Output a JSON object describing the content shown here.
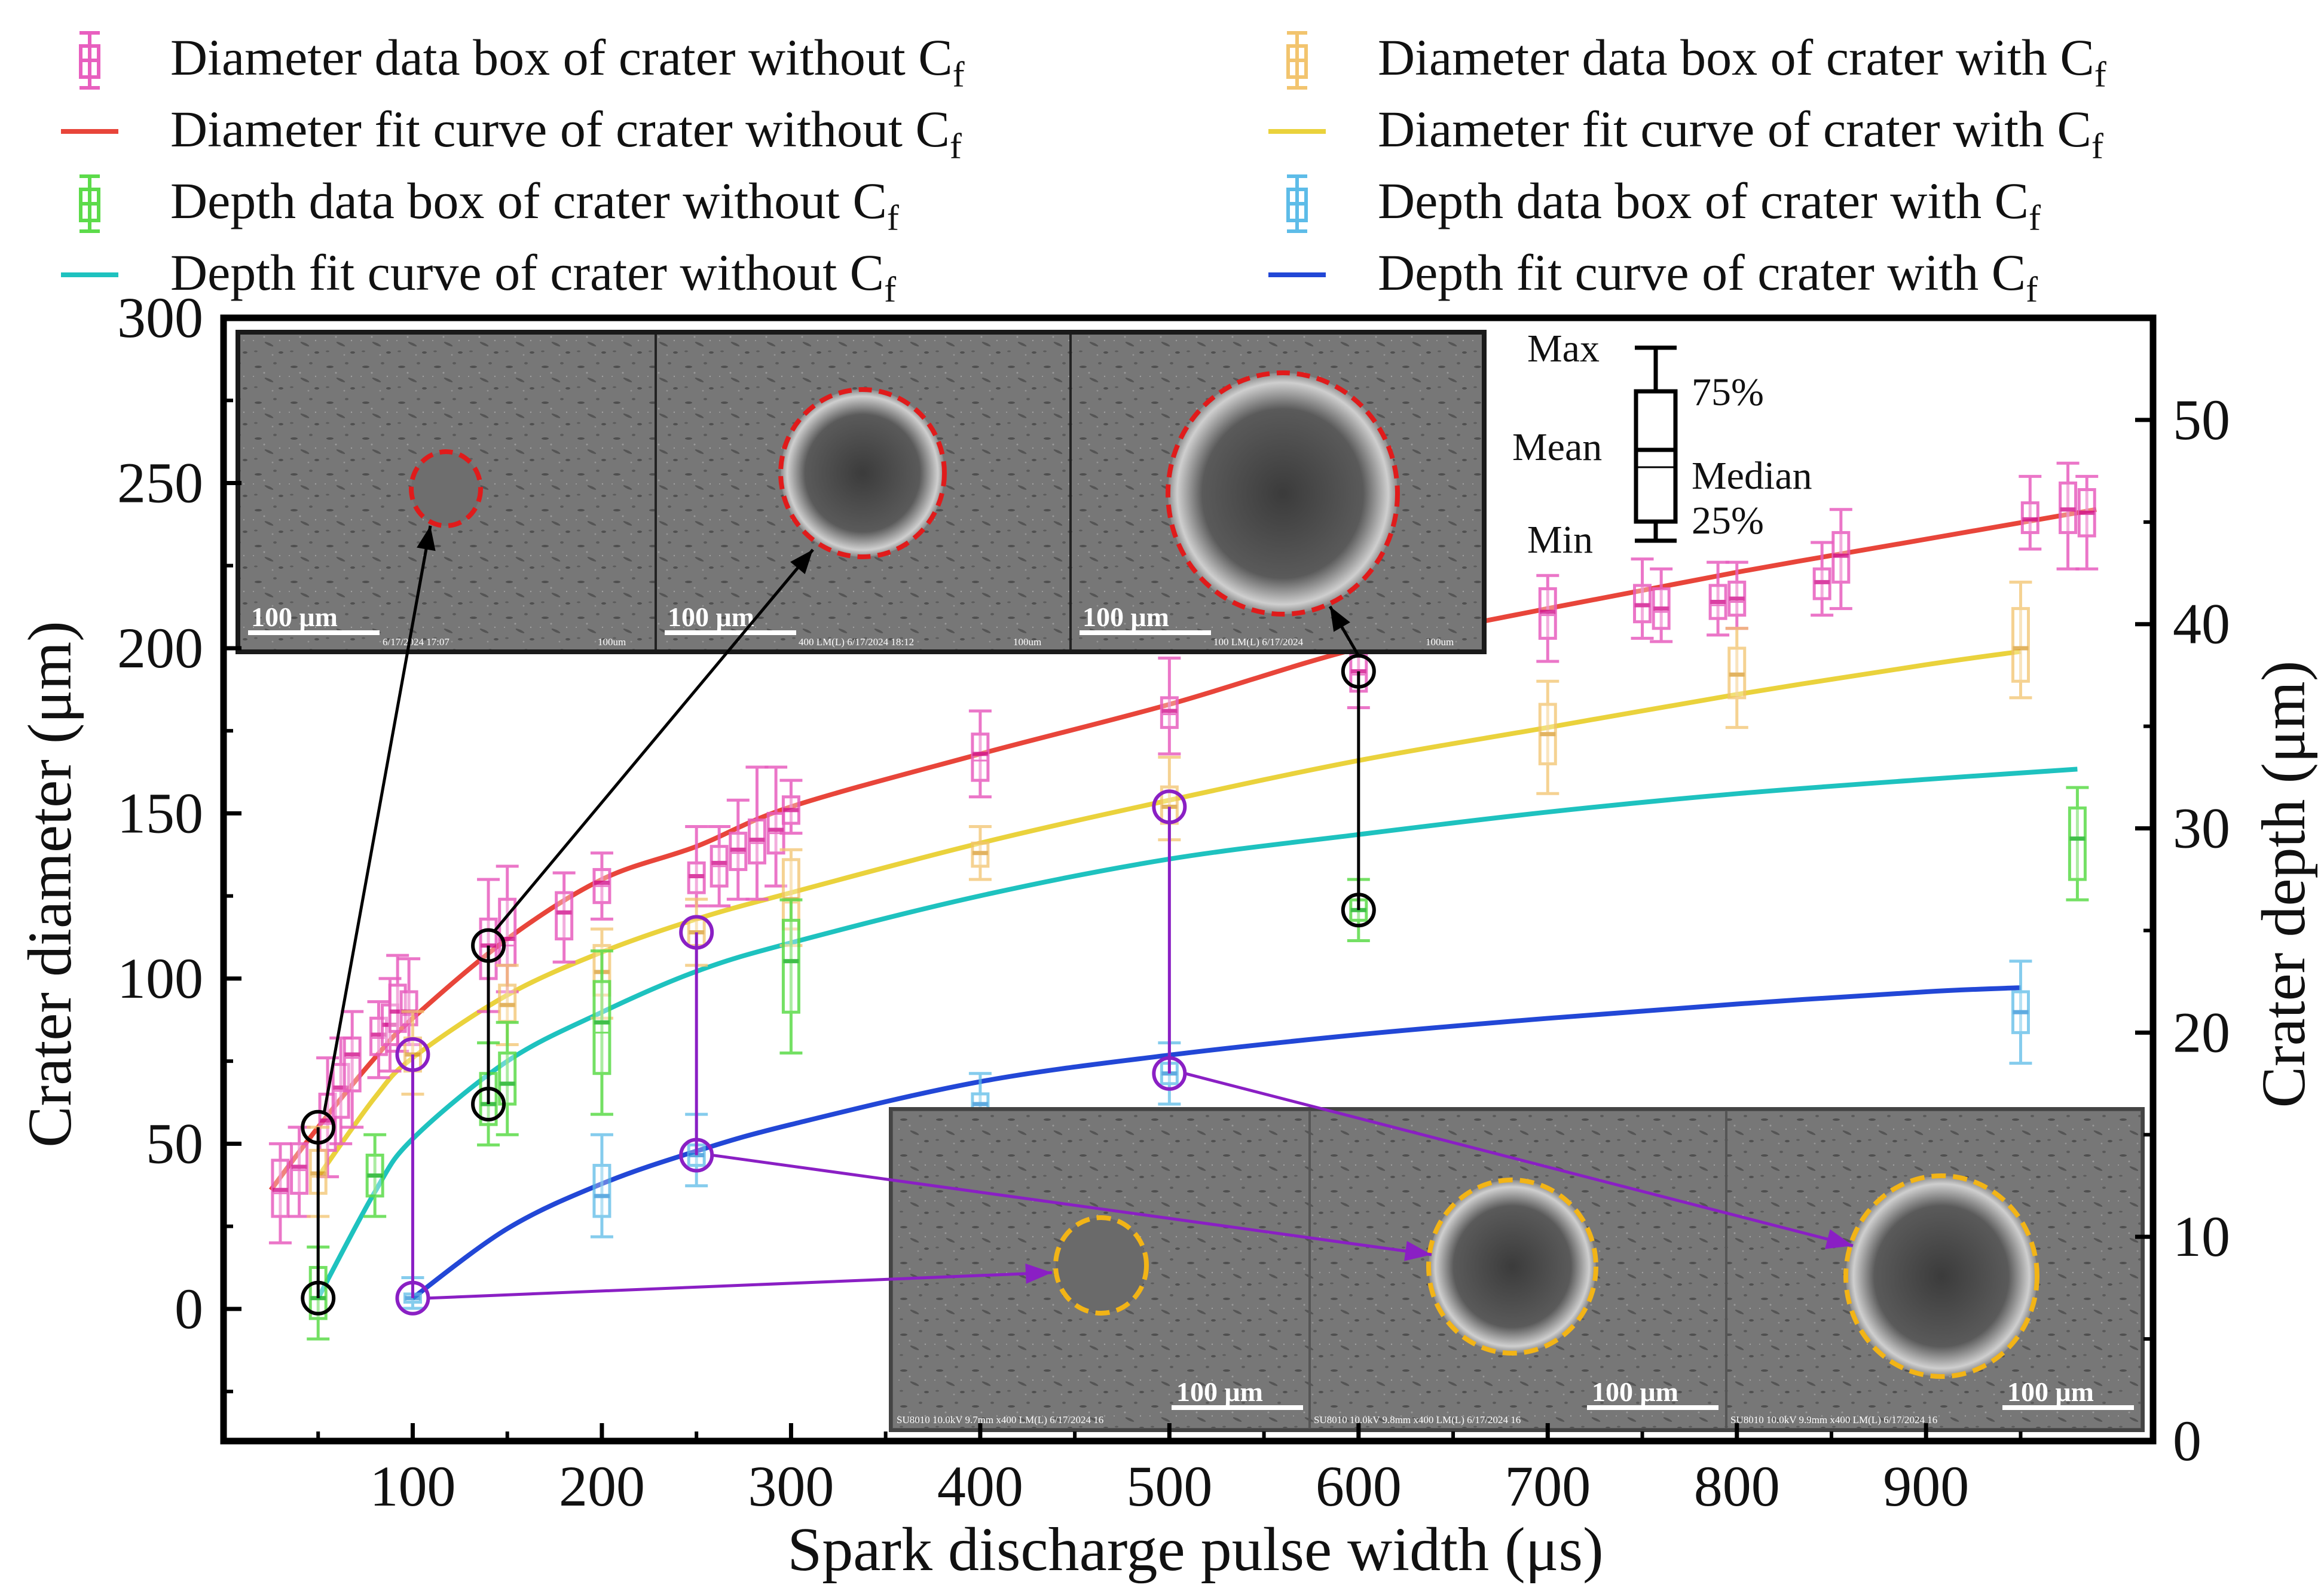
{
  "chart_data": {
    "type": "box-with-fit-curves",
    "xlabel": "Spark discharge pulse width (μs)",
    "ylabel_left": "Crater diameter (μm)",
    "ylabel_right": "Crater depth (μm)",
    "xlim": [
      0,
      1020
    ],
    "ylim_left": [
      -40,
      300
    ],
    "ylim_right": [
      0,
      55
    ],
    "x_ticks": [
      100,
      200,
      300,
      400,
      500,
      600,
      700,
      800,
      900
    ],
    "y_ticks_left": [
      0,
      50,
      100,
      150,
      200,
      250,
      300
    ],
    "y_ticks_right": [
      0,
      10,
      20,
      30,
      40,
      50
    ],
    "colors": {
      "diam_box_without": "#e85fbf",
      "diam_fit_without": "#e8453a",
      "diam_box_with": "#f2c46e",
      "diam_fit_with": "#ead23c",
      "depth_box_without": "#5cdb4a",
      "depth_fit_without": "#1ec2bf",
      "depth_box_with": "#5dbce8",
      "depth_fit_with": "#2247d6",
      "marker_black": "#000000",
      "marker_purple": "#8a1fc4",
      "circle_red": "#e01b1b",
      "circle_orange": "#f2b416"
    },
    "legend": [
      {
        "key": "diam_box_without",
        "kind": "box",
        "text": "Diameter data box of crater without C",
        "sub": "f"
      },
      {
        "key": "diam_fit_without",
        "kind": "line",
        "text": "Diameter fit curve of crater without C",
        "sub": "f"
      },
      {
        "key": "depth_box_without",
        "kind": "box",
        "text": "Depth data box of crater without C",
        "sub": "f"
      },
      {
        "key": "depth_fit_without",
        "kind": "line",
        "text": "Depth fit curve of crater without C",
        "sub": "f"
      },
      {
        "key": "diam_box_with",
        "kind": "box",
        "text": "Diameter data box of crater with C",
        "sub": "f"
      },
      {
        "key": "diam_fit_with",
        "kind": "line",
        "text": "Diameter fit curve of crater with C",
        "sub": "f"
      },
      {
        "key": "depth_box_with",
        "kind": "box",
        "text": "Depth data box of crater with C",
        "sub": "f"
      },
      {
        "key": "depth_fit_with",
        "kind": "line",
        "text": "Depth fit curve of crater with C",
        "sub": "f"
      }
    ],
    "box_legend": {
      "max": "Max",
      "q3": "75%",
      "mean": "Mean",
      "median": "Median",
      "q1": "25%",
      "min": "Min"
    },
    "fit_curves": [
      {
        "key": "diam_fit_without",
        "axis": "left",
        "x": [
          25,
          50,
          80,
          100,
          150,
          200,
          250,
          300,
          400,
          500,
          600,
          700,
          800,
          900,
          990
        ],
        "y": [
          36,
          55,
          76,
          88,
          112,
          130,
          140,
          152,
          168,
          183,
          200,
          212,
          223,
          233,
          242
        ]
      },
      {
        "key": "diam_fit_with",
        "axis": "left",
        "x": [
          50,
          80,
          100,
          150,
          200,
          250,
          300,
          400,
          500,
          600,
          700,
          800,
          900,
          950
        ],
        "y": [
          40,
          64,
          76,
          95,
          108,
          118,
          126,
          141,
          154,
          166,
          176,
          186,
          195,
          199
        ]
      },
      {
        "key": "depth_fit_without",
        "axis": "right",
        "x": [
          50,
          80,
          100,
          150,
          200,
          250,
          300,
          400,
          500,
          600,
          700,
          800,
          900,
          980
        ],
        "y": [
          7,
          12.2,
          14.8,
          18.6,
          21,
          23,
          24.4,
          26.7,
          28.5,
          29.7,
          30.8,
          31.7,
          32.4,
          32.9
        ]
      },
      {
        "key": "depth_fit_with",
        "axis": "right",
        "x": [
          100,
          150,
          200,
          250,
          300,
          400,
          500,
          600,
          700,
          800,
          900,
          950
        ],
        "y": [
          7,
          10.4,
          12.6,
          14.2,
          15.5,
          17.6,
          18.9,
          19.9,
          20.7,
          21.4,
          22,
          22.2
        ]
      }
    ],
    "boxes": [
      {
        "key": "diam_box_without",
        "axis": "left",
        "x": 30,
        "min": 20,
        "q1": 28,
        "median": 35,
        "mean": 36,
        "q3": 45,
        "max": 50
      },
      {
        "key": "diam_box_without",
        "axis": "left",
        "x": 40,
        "min": 28,
        "q1": 35,
        "median": 42,
        "mean": 43,
        "q3": 50,
        "max": 55
      },
      {
        "key": "diam_box_without",
        "axis": "left",
        "x": 55,
        "min": 40,
        "q1": 48,
        "median": 56,
        "mean": 57,
        "q3": 65,
        "max": 76
      },
      {
        "key": "diam_box_without",
        "axis": "left",
        "x": 62,
        "min": 50,
        "q1": 58,
        "median": 66,
        "mean": 67,
        "q3": 74,
        "max": 82
      },
      {
        "key": "diam_box_without",
        "axis": "left",
        "x": 68,
        "min": 55,
        "q1": 66,
        "median": 76,
        "mean": 77,
        "q3": 82,
        "max": 90
      },
      {
        "key": "diam_box_without",
        "axis": "left",
        "x": 82,
        "min": 70,
        "q1": 77,
        "median": 82,
        "mean": 83,
        "q3": 88,
        "max": 93
      },
      {
        "key": "diam_box_without",
        "axis": "left",
        "x": 88,
        "min": 72,
        "q1": 80,
        "median": 86,
        "mean": 86,
        "q3": 92,
        "max": 100
      },
      {
        "key": "diam_box_without",
        "axis": "left",
        "x": 92,
        "min": 78,
        "q1": 84,
        "median": 90,
        "mean": 90,
        "q3": 98,
        "max": 107
      },
      {
        "key": "diam_box_without",
        "axis": "left",
        "x": 98,
        "min": 80,
        "q1": 86,
        "median": 89,
        "mean": 90,
        "q3": 96,
        "max": 106
      },
      {
        "key": "diam_box_without",
        "axis": "left",
        "x": 140,
        "min": 90,
        "q1": 100,
        "median": 110,
        "mean": 110,
        "q3": 118,
        "max": 130
      },
      {
        "key": "diam_box_without",
        "axis": "left",
        "x": 150,
        "min": 96,
        "q1": 104,
        "median": 110,
        "mean": 112,
        "q3": 124,
        "max": 134
      },
      {
        "key": "diam_box_without",
        "axis": "left",
        "x": 180,
        "min": 105,
        "q1": 112,
        "median": 120,
        "mean": 120,
        "q3": 126,
        "max": 132
      },
      {
        "key": "diam_box_without",
        "axis": "left",
        "x": 200,
        "min": 118,
        "q1": 123,
        "median": 128,
        "mean": 129,
        "q3": 133,
        "max": 138
      },
      {
        "key": "diam_box_without",
        "axis": "left",
        "x": 250,
        "min": 122,
        "q1": 126,
        "median": 131,
        "mean": 131,
        "q3": 135,
        "max": 146
      },
      {
        "key": "diam_box_without",
        "axis": "left",
        "x": 262,
        "min": 122,
        "q1": 128,
        "median": 134,
        "mean": 135,
        "q3": 140,
        "max": 146
      },
      {
        "key": "diam_box_without",
        "axis": "left",
        "x": 272,
        "min": 124,
        "q1": 133,
        "median": 138,
        "mean": 139,
        "q3": 144,
        "max": 154
      },
      {
        "key": "diam_box_without",
        "axis": "left",
        "x": 282,
        "min": 124,
        "q1": 135,
        "median": 141,
        "mean": 142,
        "q3": 148,
        "max": 164
      },
      {
        "key": "diam_box_without",
        "axis": "left",
        "x": 292,
        "min": 128,
        "q1": 138,
        "median": 144,
        "mean": 145,
        "q3": 150,
        "max": 164
      },
      {
        "key": "diam_box_without",
        "axis": "left",
        "x": 300,
        "min": 144,
        "q1": 147,
        "median": 151,
        "mean": 151,
        "q3": 155,
        "max": 160
      },
      {
        "key": "diam_box_without",
        "axis": "left",
        "x": 400,
        "min": 155,
        "q1": 160,
        "median": 166,
        "mean": 168,
        "q3": 174,
        "max": 181
      },
      {
        "key": "diam_box_without",
        "axis": "left",
        "x": 500,
        "min": 168,
        "q1": 176,
        "median": 180,
        "mean": 181,
        "q3": 185,
        "max": 197
      },
      {
        "key": "diam_box_without",
        "axis": "left",
        "x": 600,
        "min": 182,
        "q1": 187,
        "median": 192,
        "mean": 193,
        "q3": 198,
        "max": 205
      },
      {
        "key": "diam_box_without",
        "axis": "left",
        "x": 700,
        "min": 196,
        "q1": 203,
        "median": 210,
        "mean": 211,
        "q3": 218,
        "max": 222
      },
      {
        "key": "diam_box_without",
        "axis": "left",
        "x": 750,
        "min": 203,
        "q1": 208,
        "median": 213,
        "mean": 213,
        "q3": 219,
        "max": 227
      },
      {
        "key": "diam_box_without",
        "axis": "left",
        "x": 760,
        "min": 202,
        "q1": 206,
        "median": 211,
        "mean": 212,
        "q3": 218,
        "max": 224
      },
      {
        "key": "diam_box_without",
        "axis": "left",
        "x": 790,
        "min": 204,
        "q1": 209,
        "median": 213,
        "mean": 214,
        "q3": 219,
        "max": 226
      },
      {
        "key": "diam_box_without",
        "axis": "left",
        "x": 800,
        "min": 206,
        "q1": 210,
        "median": 214,
        "mean": 215,
        "q3": 220,
        "max": 226
      },
      {
        "key": "diam_box_without",
        "axis": "left",
        "x": 845,
        "min": 210,
        "q1": 215,
        "median": 220,
        "mean": 220,
        "q3": 224,
        "max": 232
      },
      {
        "key": "diam_box_without",
        "axis": "left",
        "x": 855,
        "min": 212,
        "q1": 220,
        "median": 228,
        "mean": 228,
        "q3": 235,
        "max": 242
      },
      {
        "key": "diam_box_without",
        "axis": "left",
        "x": 955,
        "min": 230,
        "q1": 235,
        "median": 239,
        "mean": 239,
        "q3": 244,
        "max": 252
      },
      {
        "key": "diam_box_without",
        "axis": "left",
        "x": 975,
        "min": 224,
        "q1": 235,
        "median": 242,
        "mean": 242,
        "q3": 250,
        "max": 256
      },
      {
        "key": "diam_box_without",
        "axis": "left",
        "x": 985,
        "min": 224,
        "q1": 234,
        "median": 241,
        "mean": 241,
        "q3": 248,
        "max": 252
      },
      {
        "key": "diam_box_with",
        "axis": "left",
        "x": 50,
        "min": 28,
        "q1": 35,
        "median": 40,
        "mean": 41,
        "q3": 48,
        "max": 55
      },
      {
        "key": "diam_box_with",
        "axis": "left",
        "x": 100,
        "min": 65,
        "q1": 72,
        "median": 77,
        "mean": 77,
        "q3": 82,
        "max": 90
      },
      {
        "key": "diam_box_with",
        "axis": "left",
        "x": 150,
        "min": 80,
        "q1": 87,
        "median": 92,
        "mean": 92,
        "q3": 98,
        "max": 104
      },
      {
        "key": "diam_box_with",
        "axis": "left",
        "x": 200,
        "min": 88,
        "q1": 95,
        "median": 102,
        "mean": 102,
        "q3": 110,
        "max": 115
      },
      {
        "key": "diam_box_with",
        "axis": "left",
        "x": 250,
        "min": 104,
        "q1": 110,
        "median": 114,
        "mean": 114,
        "q3": 118,
        "max": 124
      },
      {
        "key": "diam_box_with",
        "axis": "left",
        "x": 300,
        "min": 110,
        "q1": 115,
        "median": 123,
        "mean": 124,
        "q3": 136,
        "max": 139
      },
      {
        "key": "diam_box_with",
        "axis": "left",
        "x": 400,
        "min": 130,
        "q1": 134,
        "median": 138,
        "mean": 138,
        "q3": 141,
        "max": 146
      },
      {
        "key": "diam_box_with",
        "axis": "left",
        "x": 500,
        "min": 142,
        "q1": 147,
        "median": 152,
        "mean": 152,
        "q3": 158,
        "max": 167
      },
      {
        "key": "diam_box_with",
        "axis": "left",
        "x": 700,
        "min": 156,
        "q1": 165,
        "median": 174,
        "mean": 174,
        "q3": 183,
        "max": 190
      },
      {
        "key": "diam_box_with",
        "axis": "left",
        "x": 800,
        "min": 176,
        "q1": 185,
        "median": 192,
        "mean": 192,
        "q3": 200,
        "max": 206
      },
      {
        "key": "diam_box_with",
        "axis": "left",
        "x": 950,
        "min": 185,
        "q1": 190,
        "median": 200,
        "mean": 200,
        "q3": 212,
        "max": 220
      },
      {
        "key": "depth_box_without",
        "axis": "right",
        "x": 50,
        "min": 5,
        "q1": 6,
        "median": 7,
        "mean": 7,
        "q3": 8.5,
        "max": 9.5
      },
      {
        "key": "depth_box_without",
        "axis": "right",
        "x": 80,
        "min": 11,
        "q1": 12,
        "median": 13,
        "mean": 13,
        "q3": 14,
        "max": 15
      },
      {
        "key": "depth_box_without",
        "axis": "right",
        "x": 140,
        "min": 14.5,
        "q1": 15.5,
        "median": 16.5,
        "mean": 16.5,
        "q3": 18,
        "max": 19.5
      },
      {
        "key": "depth_box_without",
        "axis": "right",
        "x": 150,
        "min": 15,
        "q1": 16.5,
        "median": 17.5,
        "mean": 17.5,
        "q3": 19,
        "max": 20.5
      },
      {
        "key": "depth_box_without",
        "axis": "right",
        "x": 200,
        "min": 16,
        "q1": 18,
        "median": 20,
        "mean": 20.5,
        "q3": 22.5,
        "max": 24
      },
      {
        "key": "depth_box_without",
        "axis": "right",
        "x": 300,
        "min": 19,
        "q1": 21,
        "median": 23.5,
        "mean": 23.5,
        "q3": 25.5,
        "max": 26.5
      },
      {
        "key": "depth_box_without",
        "axis": "right",
        "x": 600,
        "min": 24.5,
        "q1": 25.5,
        "median": 26,
        "mean": 26,
        "q3": 26.5,
        "max": 27.5
      },
      {
        "key": "depth_box_without",
        "axis": "right",
        "x": 980,
        "min": 26.5,
        "q1": 27.5,
        "median": 29.5,
        "mean": 29.5,
        "q3": 31,
        "max": 32
      },
      {
        "key": "depth_box_with",
        "axis": "right",
        "x": 100,
        "min": 6.5,
        "q1": 6.8,
        "median": 7,
        "mean": 7,
        "q3": 7.2,
        "max": 8
      },
      {
        "key": "depth_box_with",
        "axis": "right",
        "x": 200,
        "min": 10,
        "q1": 11,
        "median": 12,
        "mean": 12,
        "q3": 13.5,
        "max": 15
      },
      {
        "key": "depth_box_with",
        "axis": "right",
        "x": 250,
        "min": 12.5,
        "q1": 13.5,
        "median": 14,
        "mean": 14,
        "q3": 14.5,
        "max": 16
      },
      {
        "key": "depth_box_with",
        "axis": "right",
        "x": 400,
        "min": 15.5,
        "q1": 16,
        "median": 16.5,
        "mean": 16.5,
        "q3": 17,
        "max": 18
      },
      {
        "key": "depth_box_with",
        "axis": "right",
        "x": 500,
        "min": 16.5,
        "q1": 17.5,
        "median": 18,
        "mean": 18,
        "q3": 18.5,
        "max": 19.5
      },
      {
        "key": "depth_box_with",
        "axis": "right",
        "x": 950,
        "min": 18.5,
        "q1": 20,
        "median": 21,
        "mean": 21,
        "q3": 22,
        "max": 23.5
      }
    ],
    "highlight_markers": [
      {
        "group": "black",
        "x": 50,
        "diameter": 55,
        "depth": 7
      },
      {
        "group": "black",
        "x": 140,
        "diameter": 110,
        "depth": 16.5
      },
      {
        "group": "black",
        "x": 600,
        "diameter": 193,
        "depth": 26
      },
      {
        "group": "purple",
        "x": 100,
        "diameter": 77,
        "depth": 7
      },
      {
        "group": "purple",
        "x": 250,
        "diameter": 114,
        "depth": 14
      },
      {
        "group": "purple",
        "x": 500,
        "diameter": 152,
        "depth": 18
      }
    ],
    "insets": [
      {
        "name": "top-inset",
        "group": "black",
        "panels": [
          {
            "scale": "100 μm",
            "meta": "6/17/2024 17:07",
            "meta2": "100um"
          },
          {
            "scale": "100 μm",
            "meta": "400 LM(L) 6/17/2024 18:12",
            "meta2": "100um"
          },
          {
            "scale": "100 μm",
            "meta": "100 LM(L) 6/17/2024",
            "meta2": "100um"
          }
        ]
      },
      {
        "name": "bottom-inset",
        "group": "purple",
        "panels": [
          {
            "scale": "100 μm",
            "meta": "SU8010 10.0kV 9.7mm x400 LM(L) 6/17/2024 16"
          },
          {
            "scale": "100 μm",
            "meta": "SU8010 10.0kV 9.8mm x400 LM(L) 6/17/2024 16"
          },
          {
            "scale": "100 μm",
            "meta": "SU8010 10.0kV 9.9mm x400 LM(L) 6/17/2024 16"
          }
        ]
      }
    ]
  }
}
